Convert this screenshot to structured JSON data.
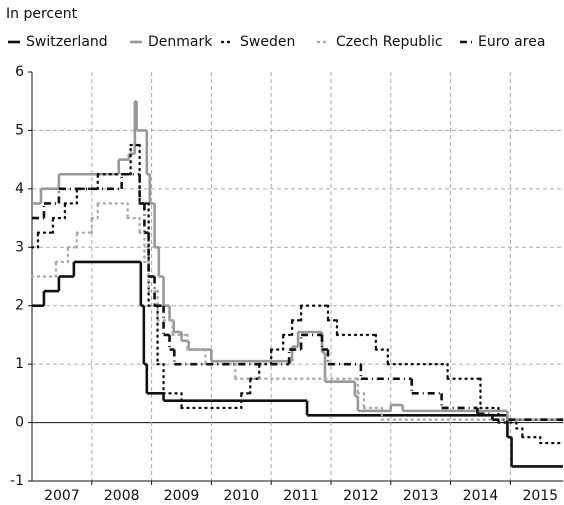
{
  "chart_data": {
    "type": "step",
    "title": "In percent",
    "xlim": [
      2007,
      2015.88
    ],
    "ylim": [
      -1,
      6
    ],
    "yticks": [
      -1,
      0,
      1,
      2,
      3,
      4,
      5,
      6
    ],
    "xticks": [
      {
        "value": 2007.5,
        "label": "2007"
      },
      {
        "value": 2008.5,
        "label": "2008"
      },
      {
        "value": 2009.5,
        "label": "2009"
      },
      {
        "value": 2010.5,
        "label": "2010"
      },
      {
        "value": 2011.5,
        "label": "2011"
      },
      {
        "value": 2012.5,
        "label": "2012"
      },
      {
        "value": 2013.5,
        "label": "2013"
      },
      {
        "value": 2014.5,
        "label": "2014"
      },
      {
        "value": 2015.5,
        "label": "2015"
      }
    ],
    "xgrid": [
      2008,
      2009,
      2010,
      2011,
      2012,
      2013,
      2014,
      2015
    ],
    "grid": true,
    "series": [
      {
        "name": "Switzerland",
        "color": "#111111",
        "style": "solid",
        "x": [
          2007.0,
          2007.2,
          2007.45,
          2007.7,
          2008.82,
          2008.87,
          2008.92,
          2009.2,
          2011.6,
          2014.95,
          2015.02
        ],
        "values": [
          2.0,
          2.25,
          2.5,
          2.75,
          2.0,
          1.0,
          0.5,
          0.375,
          0.125,
          -0.25,
          -0.75
        ]
      },
      {
        "name": "Denmark",
        "color": "#999999",
        "style": "solid",
        "x": [
          2007.0,
          2007.15,
          2007.45,
          2008.45,
          2008.62,
          2008.72,
          2008.75,
          2008.92,
          2008.97,
          2009.05,
          2009.12,
          2009.2,
          2009.3,
          2009.37,
          2009.5,
          2009.62,
          2010.0,
          2011.35,
          2011.45,
          2011.85,
          2011.9,
          2012.4,
          2012.45,
          2013.0,
          2013.2,
          2014.95
        ],
        "values": [
          3.75,
          4.0,
          4.25,
          4.5,
          4.6,
          5.5,
          5.0,
          4.25,
          3.75,
          3.0,
          2.5,
          2.0,
          1.75,
          1.55,
          1.4,
          1.25,
          1.05,
          1.3,
          1.55,
          1.2,
          0.7,
          0.45,
          0.2,
          0.3,
          0.2,
          0.05
        ]
      },
      {
        "name": "Sweden",
        "color": "#111111",
        "style": "dotted",
        "x": [
          2007.0,
          2007.1,
          2007.35,
          2007.55,
          2007.75,
          2008.1,
          2008.65,
          2008.8,
          2008.95,
          2009.1,
          2009.2,
          2009.5,
          2010.5,
          2010.65,
          2010.8,
          2011.0,
          2011.2,
          2011.35,
          2011.5,
          2011.95,
          2012.1,
          2012.75,
          2012.95,
          2013.95,
          2014.5,
          2014.8,
          2015.1,
          2015.2,
          2015.5
        ],
        "values": [
          3.0,
          3.25,
          3.5,
          3.75,
          4.0,
          4.25,
          4.75,
          3.75,
          2.0,
          1.0,
          0.5,
          0.25,
          0.5,
          0.75,
          1.0,
          1.25,
          1.5,
          1.75,
          2.0,
          1.75,
          1.5,
          1.25,
          1.0,
          0.75,
          0.25,
          0.0,
          -0.1,
          -0.25,
          -0.35
        ]
      },
      {
        "name": "Czech Republic",
        "color": "#aaaaaa",
        "style": "dotted",
        "x": [
          2007.0,
          2007.4,
          2007.6,
          2007.75,
          2008.0,
          2008.1,
          2008.6,
          2008.8,
          2008.88,
          2008.95,
          2009.1,
          2009.35,
          2009.6,
          2009.9,
          2010.4,
          2012.45,
          2012.55,
          2012.85
        ],
        "values": [
          2.5,
          2.75,
          3.0,
          3.25,
          3.5,
          3.75,
          3.5,
          3.25,
          2.75,
          2.25,
          1.75,
          1.5,
          1.25,
          1.0,
          0.75,
          0.5,
          0.25,
          0.05
        ]
      },
      {
        "name": "Euro area",
        "color": "#111111",
        "style": "dashdot",
        "x": [
          2007.0,
          2007.2,
          2007.45,
          2008.5,
          2008.8,
          2008.88,
          2008.95,
          2009.05,
          2009.2,
          2009.3,
          2009.38,
          2011.3,
          2011.5,
          2011.85,
          2011.95,
          2012.5,
          2013.35,
          2013.85,
          2014.45,
          2014.7
        ],
        "values": [
          3.5,
          3.75,
          4.0,
          4.25,
          3.75,
          3.25,
          2.5,
          2.0,
          1.5,
          1.25,
          1.0,
          1.25,
          1.5,
          1.25,
          1.0,
          0.75,
          0.5,
          0.25,
          0.15,
          0.05
        ]
      }
    ]
  }
}
